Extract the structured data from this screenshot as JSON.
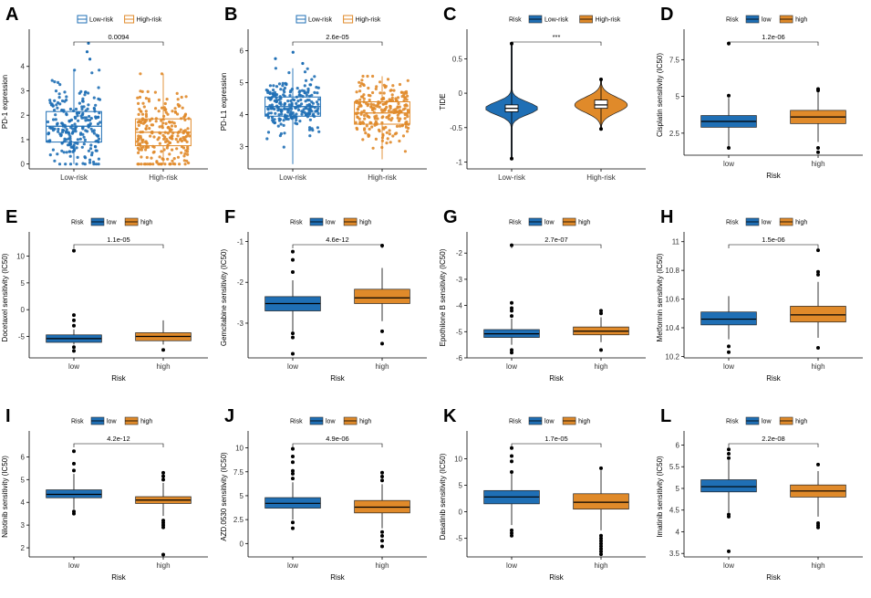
{
  "colors": {
    "low": "#1f6fb5",
    "high": "#e08a2a"
  },
  "chart_data": [
    {
      "id": "A",
      "type": "box",
      "style": "box-jitter",
      "title": "",
      "ylabel": "PD-1 expression",
      "xlabel": "",
      "categories": [
        "Low-risk",
        "High-risk"
      ],
      "legend_title": "",
      "legend": [
        "Low-risk",
        "High-risk"
      ],
      "ylim": [
        -0.2,
        5.3
      ],
      "yticks": [
        0,
        1,
        2,
        3,
        4
      ],
      "groups": [
        {
          "name": "Low-risk",
          "min": 0,
          "q1": 0.9,
          "median": 1.55,
          "q3": 2.15,
          "max": 3.85,
          "outliers": [
            4.3,
            4.6,
            4.95
          ]
        },
        {
          "name": "High-risk",
          "min": 0,
          "q1": 0.75,
          "median": 1.3,
          "q3": 1.85,
          "max": 3.7,
          "outliers": []
        }
      ],
      "pvalue": "0.0094"
    },
    {
      "id": "B",
      "type": "box",
      "style": "box-jitter",
      "title": "",
      "ylabel": "PD-L1 expression",
      "xlabel": "",
      "categories": [
        "Low-risk",
        "High-risk"
      ],
      "legend_title": "",
      "legend": [
        "Low-risk",
        "High-risk"
      ],
      "ylim": [
        2.3,
        6.5
      ],
      "yticks": [
        3,
        4,
        5,
        6
      ],
      "groups": [
        {
          "name": "Low-risk",
          "min": 2.45,
          "q1": 3.95,
          "median": 4.25,
          "q3": 4.55,
          "max": 5.45,
          "outliers": [
            5.6,
            5.75,
            5.95
          ]
        },
        {
          "name": "High-risk",
          "min": 2.6,
          "q1": 3.7,
          "median": 4.05,
          "q3": 4.4,
          "max": 5.2,
          "outliers": []
        }
      ],
      "pvalue": "2.6e-05"
    },
    {
      "id": "C",
      "type": "violin",
      "title": "",
      "ylabel": "TIDE",
      "xlabel": "",
      "categories": [
        "Low-risk",
        "High-risk"
      ],
      "legend_title": "Risk",
      "legend": [
        "Low-risk",
        "High-risk"
      ],
      "ylim": [
        -1.1,
        0.85
      ],
      "yticks": [
        -1.0,
        -0.5,
        0.0,
        0.5
      ],
      "groups": [
        {
          "name": "Low-risk",
          "min": -0.95,
          "q1": -0.27,
          "median": -0.22,
          "q3": -0.17,
          "max": 0.72,
          "outliers": []
        },
        {
          "name": "High-risk",
          "min": -0.52,
          "q1": -0.22,
          "median": -0.17,
          "q3": -0.1,
          "max": 0.2,
          "outliers": []
        }
      ],
      "pvalue": "***"
    },
    {
      "id": "D",
      "type": "box",
      "style": "box",
      "title": "",
      "ylabel": "Cisplatin sensitivity (IC50)",
      "xlabel": "Risk",
      "categories": [
        "low",
        "high"
      ],
      "legend_title": "Risk",
      "legend": [
        "low",
        "high"
      ],
      "ylim": [
        1.0,
        9.2
      ],
      "yticks": [
        2.5,
        5.0,
        7.5
      ],
      "groups": [
        {
          "name": "low",
          "min": 1.6,
          "q1": 2.9,
          "median": 3.3,
          "q3": 3.7,
          "max": 4.9,
          "outliers": [
            1.5,
            5.05,
            8.6
          ]
        },
        {
          "name": "high",
          "min": 1.9,
          "q1": 3.15,
          "median": 3.6,
          "q3": 4.05,
          "max": 5.3,
          "outliers": [
            1.2,
            1.5,
            5.4,
            5.5
          ]
        }
      ],
      "pvalue": "1.2e-06"
    },
    {
      "id": "E",
      "type": "box",
      "style": "box",
      "title": "",
      "ylabel": "Docetaxel sensitivity (IC50)",
      "xlabel": "Risk",
      "categories": [
        "low",
        "high"
      ],
      "legend_title": "Risk",
      "legend": [
        "low",
        "high"
      ],
      "ylim": [
        -9,
        13.5
      ],
      "yticks": [
        -5,
        0,
        5,
        10
      ],
      "groups": [
        {
          "name": "low",
          "min": -6.5,
          "q1": -6.1,
          "median": -5.4,
          "q3": -4.7,
          "max": -3.7,
          "outliers": [
            -7.7,
            -7.0,
            -3.0,
            -2.0,
            -1.0,
            11.0
          ]
        },
        {
          "name": "high",
          "min": -6.5,
          "q1": -5.8,
          "median": -5.0,
          "q3": -4.3,
          "max": -2.0,
          "outliers": [
            -7.5
          ]
        }
      ],
      "pvalue": "1.1e-05"
    },
    {
      "id": "F",
      "type": "box",
      "style": "box",
      "title": "",
      "ylabel": "Gemcitabine sensitivity (IC50)",
      "xlabel": "Risk",
      "categories": [
        "low",
        "high"
      ],
      "legend_title": "Risk",
      "legend": [
        "low",
        "high"
      ],
      "ylim": [
        -3.85,
        -0.9
      ],
      "yticks": [
        -3,
        -2,
        -1
      ],
      "groups": [
        {
          "name": "low",
          "min": -3.2,
          "q1": -2.7,
          "median": -2.52,
          "q3": -2.35,
          "max": -1.95,
          "outliers": [
            -3.75,
            -3.35,
            -3.25,
            -1.75,
            -1.45,
            -1.25
          ]
        },
        {
          "name": "high",
          "min": -2.95,
          "q1": -2.52,
          "median": -2.38,
          "q3": -2.17,
          "max": -1.65,
          "outliers": [
            -3.5,
            -3.2,
            -1.1
          ]
        }
      ],
      "pvalue": "4.6e-12"
    },
    {
      "id": "G",
      "type": "box",
      "style": "box",
      "title": "",
      "ylabel": "Epothilone B sensitivity (IC50)",
      "xlabel": "Risk",
      "categories": [
        "low",
        "high"
      ],
      "legend_title": "Risk",
      "legend": [
        "low",
        "high"
      ],
      "ylim": [
        -6.0,
        -1.4
      ],
      "yticks": [
        -6,
        -5,
        -4,
        -3,
        -2
      ],
      "groups": [
        {
          "name": "low",
          "min": -5.5,
          "q1": -5.22,
          "median": -5.08,
          "q3": -4.92,
          "max": -4.5,
          "outliers": [
            -5.8,
            -5.7,
            -4.4,
            -4.2,
            -4.1,
            -3.9,
            -1.7
          ]
        },
        {
          "name": "high",
          "min": -5.4,
          "q1": -5.12,
          "median": -4.98,
          "q3": -4.82,
          "max": -4.45,
          "outliers": [
            -5.7,
            -4.3,
            -4.2
          ]
        }
      ],
      "pvalue": "2.7e-07"
    },
    {
      "id": "H",
      "type": "box",
      "style": "box",
      "title": "",
      "ylabel": "Metformin sensitivity (IC50)",
      "xlabel": "Risk",
      "categories": [
        "low",
        "high"
      ],
      "legend_title": "Risk",
      "legend": [
        "low",
        "high"
      ],
      "ylim": [
        10.19,
        11.03
      ],
      "yticks": [
        10.2,
        10.4,
        10.6,
        10.8,
        11.0
      ],
      "groups": [
        {
          "name": "low",
          "min": 10.32,
          "q1": 10.42,
          "median": 10.46,
          "q3": 10.51,
          "max": 10.62,
          "outliers": [
            10.23,
            10.27
          ]
        },
        {
          "name": "high",
          "min": 10.33,
          "q1": 10.44,
          "median": 10.49,
          "q3": 10.55,
          "max": 10.72,
          "outliers": [
            10.26,
            10.77,
            10.79,
            10.94
          ]
        }
      ],
      "pvalue": "1.5e-06"
    },
    {
      "id": "I",
      "type": "box",
      "style": "box",
      "title": "",
      "ylabel": "Nilotinib sensitivity (IC50)",
      "xlabel": "Risk",
      "categories": [
        "low",
        "high"
      ],
      "legend_title": "Risk",
      "legend": [
        "low",
        "high"
      ],
      "ylim": [
        1.6,
        6.9
      ],
      "yticks": [
        2,
        3,
        4,
        5,
        6
      ],
      "groups": [
        {
          "name": "low",
          "min": 3.7,
          "q1": 4.2,
          "median": 4.35,
          "q3": 4.55,
          "max": 5.25,
          "outliers": [
            3.5,
            3.6,
            5.4,
            5.7,
            6.25
          ]
        },
        {
          "name": "high",
          "min": 3.4,
          "q1": 3.95,
          "median": 4.1,
          "q3": 4.25,
          "max": 4.85,
          "outliers": [
            1.7,
            2.9,
            3.0,
            3.1,
            3.2,
            5.0,
            5.15,
            5.3
          ]
        }
      ],
      "pvalue": "4.2e-12"
    },
    {
      "id": "J",
      "type": "box",
      "style": "box",
      "title": "",
      "ylabel": "AZD.0530 sensitivity (IC50)",
      "xlabel": "Risk",
      "categories": [
        "low",
        "high"
      ],
      "legend_title": "Risk",
      "legend": [
        "low",
        "high"
      ],
      "ylim": [
        -1.4,
        11.2
      ],
      "yticks": [
        0.0,
        2.5,
        5.0,
        7.5,
        10.0
      ],
      "groups": [
        {
          "name": "low",
          "min": 2.5,
          "q1": 3.7,
          "median": 4.2,
          "q3": 4.8,
          "max": 6.4,
          "outliers": [
            1.6,
            2.2,
            6.8,
            7.3,
            7.6,
            8.5,
            9.1,
            9.9
          ]
        },
        {
          "name": "high",
          "min": 1.6,
          "q1": 3.2,
          "median": 3.8,
          "q3": 4.5,
          "max": 6.2,
          "outliers": [
            -0.3,
            0.3,
            0.8,
            1.2,
            6.6,
            7.0,
            7.4
          ]
        }
      ],
      "pvalue": "4.9e-06"
    },
    {
      "id": "K",
      "type": "box",
      "style": "box",
      "title": "",
      "ylabel": "Dasatinib sensitivity (IC50)",
      "xlabel": "Risk",
      "categories": [
        "low",
        "high"
      ],
      "legend_title": "Risk",
      "legend": [
        "low",
        "high"
      ],
      "ylim": [
        -8.5,
        14.2
      ],
      "yticks": [
        -5,
        0,
        5,
        10
      ],
      "groups": [
        {
          "name": "low",
          "min": -2.5,
          "q1": 1.5,
          "median": 2.8,
          "q3": 4.0,
          "max": 7.2,
          "outliers": [
            -4.5,
            -4.0,
            -3.5,
            7.5,
            9.5,
            10.5,
            12.0
          ]
        },
        {
          "name": "high",
          "min": -3.5,
          "q1": 0.5,
          "median": 1.8,
          "q3": 3.4,
          "max": 7.8,
          "outliers": [
            -8.0,
            -7.5,
            -7.0,
            -6.5,
            -6.0,
            -5.5,
            -5.0,
            -4.5,
            8.2
          ]
        }
      ],
      "pvalue": "1.7e-05"
    },
    {
      "id": "L",
      "type": "box",
      "style": "box",
      "title": "",
      "ylabel": "Imatinib sensitivity (IC50)",
      "xlabel": "Risk",
      "categories": [
        "low",
        "high"
      ],
      "legend_title": "Risk",
      "legend": [
        "low",
        "high"
      ],
      "ylim": [
        3.42,
        6.2
      ],
      "yticks": [
        3.5,
        4.0,
        4.5,
        5.0,
        5.5,
        6.0
      ],
      "groups": [
        {
          "name": "low",
          "min": 4.45,
          "q1": 4.92,
          "median": 5.04,
          "q3": 5.2,
          "max": 5.65,
          "outliers": [
            3.55,
            4.35,
            4.4,
            5.7,
            5.8,
            5.9
          ]
        },
        {
          "name": "high",
          "min": 4.35,
          "q1": 4.8,
          "median": 4.94,
          "q3": 5.08,
          "max": 5.4,
          "outliers": [
            4.1,
            4.15,
            4.2,
            5.55
          ]
        }
      ],
      "pvalue": "2.2e-08"
    }
  ]
}
